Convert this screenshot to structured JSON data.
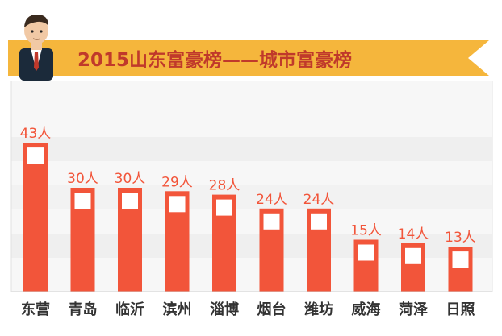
{
  "banner": {
    "title": "2015山东富豪榜——城市富豪榜",
    "ribbon_color": "#F5B63C",
    "title_color": "#C0392B"
  },
  "chart_data": {
    "type": "bar",
    "categories": [
      "东营",
      "青岛",
      "临沂",
      "滨州",
      "淄博",
      "烟台",
      "潍坊",
      "威海",
      "菏泽",
      "日照"
    ],
    "values": [
      43,
      30,
      30,
      29,
      28,
      24,
      24,
      15,
      14,
      13
    ],
    "value_labels": [
      "43人",
      "30人",
      "30人",
      "29人",
      "28人",
      "24人",
      "24人",
      "15人",
      "14人",
      "13人"
    ],
    "ylim": [
      0,
      50
    ],
    "grid": false,
    "bar_color": "#F2553A",
    "label_color": "#F2553A",
    "category_color": "#333333"
  }
}
